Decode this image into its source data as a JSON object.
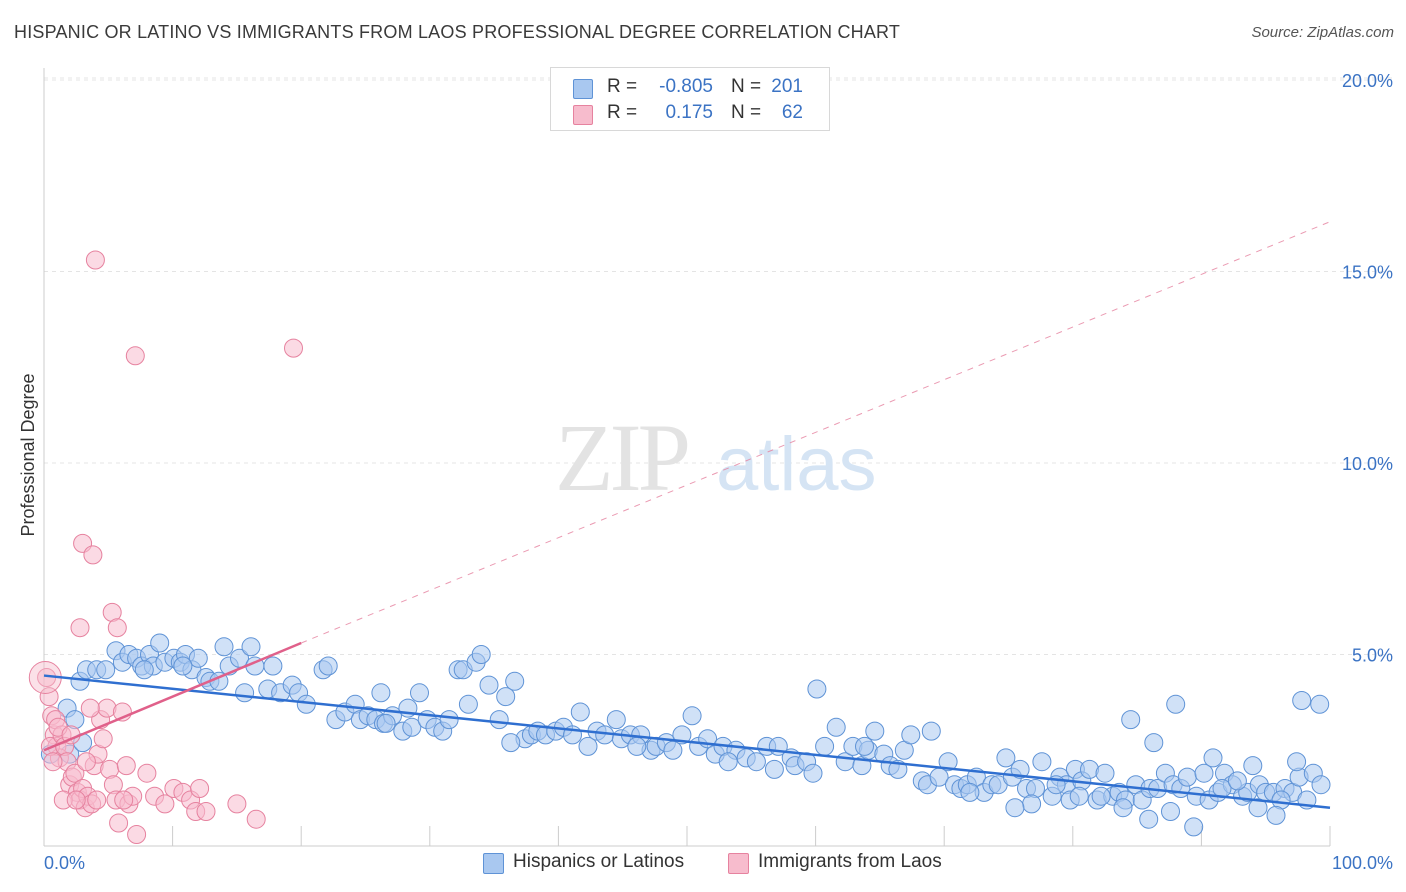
{
  "title": "HISPANIC OR LATINO VS IMMIGRANTS FROM LAOS PROFESSIONAL DEGREE CORRELATION CHART",
  "source": "Source: ZipAtlas.com",
  "watermark": {
    "zip": "ZIP",
    "atlas": "atlas"
  },
  "legend_top": {
    "rows": [
      {
        "r_label": "R =",
        "r_value": "-0.805",
        "n_label": "N =",
        "n_value": "201",
        "color": "#a9c8f0",
        "border": "#5f93d6"
      },
      {
        "r_label": "R =",
        "r_value": "0.175",
        "n_label": "N =",
        "n_value": "62",
        "color": "#f7bccd",
        "border": "#e6829f"
      }
    ]
  },
  "legend_bottom": [
    {
      "label": "Hispanics or Latinos",
      "color": "#a9c8f0",
      "border": "#5f93d6"
    },
    {
      "label": "Immigrants from Laos",
      "color": "#f7bccd",
      "border": "#e6829f"
    }
  ],
  "chart_data": {
    "type": "scatter",
    "title": "HISPANIC OR LATINO VS IMMIGRANTS FROM LAOS PROFESSIONAL DEGREE CORRELATION CHART",
    "xlabel": "",
    "ylabel": "Professional Degree",
    "xlim": [
      0,
      100
    ],
    "ylim": [
      0,
      20
    ],
    "x_ticks": [
      "0.0%",
      "100.0%"
    ],
    "y_ticks": [
      {
        "value": 5,
        "label": "5.0%"
      },
      {
        "value": 10,
        "label": "10.0%"
      },
      {
        "value": 15,
        "label": "15.0%"
      },
      {
        "value": 20,
        "label": "20.0%"
      }
    ],
    "grid": true,
    "legend": "top-center",
    "series": [
      {
        "name": "Hispanics or Latinos",
        "color": "#5f93d6",
        "fill": "#a9c8f0",
        "r": -0.805,
        "n": 201,
        "trend": {
          "x0": 0,
          "y0": 4.45,
          "x1": 100,
          "y1": 1.0,
          "style": "solid"
        },
        "points": [
          [
            0.5,
            2.4
          ],
          [
            1.8,
            3.6
          ],
          [
            2.4,
            3.3
          ],
          [
            2.8,
            4.3
          ],
          [
            3.3,
            4.6
          ],
          [
            4.1,
            4.6
          ],
          [
            4.8,
            4.6
          ],
          [
            5.6,
            5.1
          ],
          [
            6.1,
            4.8
          ],
          [
            6.6,
            5.0
          ],
          [
            7.2,
            4.9
          ],
          [
            7.6,
            4.7
          ],
          [
            8.2,
            5.0
          ],
          [
            8.5,
            4.7
          ],
          [
            9.0,
            5.3
          ],
          [
            9.4,
            4.8
          ],
          [
            10.1,
            4.9
          ],
          [
            10.6,
            4.8
          ],
          [
            11.0,
            5.0
          ],
          [
            11.5,
            4.6
          ],
          [
            12.0,
            4.9
          ],
          [
            12.6,
            4.4
          ],
          [
            12.9,
            4.3
          ],
          [
            14.0,
            5.2
          ],
          [
            14.4,
            4.7
          ],
          [
            15.2,
            4.9
          ],
          [
            16.1,
            5.2
          ],
          [
            15.6,
            4.0
          ],
          [
            16.4,
            4.7
          ],
          [
            17.4,
            4.1
          ],
          [
            17.8,
            4.7
          ],
          [
            18.4,
            4.0
          ],
          [
            19.3,
            4.2
          ],
          [
            19.8,
            4.0
          ],
          [
            20.4,
            3.7
          ],
          [
            21.7,
            4.6
          ],
          [
            22.1,
            4.7
          ],
          [
            22.7,
            3.3
          ],
          [
            23.4,
            3.5
          ],
          [
            24.2,
            3.7
          ],
          [
            24.6,
            3.3
          ],
          [
            25.2,
            3.4
          ],
          [
            25.8,
            3.3
          ],
          [
            26.4,
            3.2
          ],
          [
            26.2,
            4.0
          ],
          [
            27.1,
            3.4
          ],
          [
            27.9,
            3.0
          ],
          [
            28.3,
            3.6
          ],
          [
            28.6,
            3.1
          ],
          [
            29.2,
            4.0
          ],
          [
            29.8,
            3.3
          ],
          [
            30.4,
            3.1
          ],
          [
            31.0,
            3.0
          ],
          [
            31.5,
            3.3
          ],
          [
            32.2,
            4.6
          ],
          [
            32.6,
            4.6
          ],
          [
            33.0,
            3.7
          ],
          [
            33.6,
            4.8
          ],
          [
            34.0,
            5.0
          ],
          [
            34.6,
            4.2
          ],
          [
            35.4,
            3.3
          ],
          [
            35.9,
            3.9
          ],
          [
            36.6,
            4.3
          ],
          [
            37.4,
            2.8
          ],
          [
            37.9,
            2.9
          ],
          [
            38.4,
            3.0
          ],
          [
            39.0,
            2.9
          ],
          [
            39.8,
            3.0
          ],
          [
            40.4,
            3.1
          ],
          [
            41.1,
            2.9
          ],
          [
            41.7,
            3.5
          ],
          [
            42.3,
            2.6
          ],
          [
            43.0,
            3.0
          ],
          [
            43.6,
            2.9
          ],
          [
            44.5,
            3.3
          ],
          [
            44.9,
            2.8
          ],
          [
            45.6,
            2.9
          ],
          [
            46.4,
            2.9
          ],
          [
            47.2,
            2.5
          ],
          [
            47.6,
            2.6
          ],
          [
            48.4,
            2.7
          ],
          [
            48.9,
            2.5
          ],
          [
            49.6,
            2.9
          ],
          [
            50.4,
            3.4
          ],
          [
            50.9,
            2.6
          ],
          [
            51.6,
            2.8
          ],
          [
            52.2,
            2.4
          ],
          [
            52.8,
            2.6
          ],
          [
            53.8,
            2.5
          ],
          [
            54.6,
            2.3
          ],
          [
            55.4,
            2.2
          ],
          [
            56.2,
            2.6
          ],
          [
            56.8,
            2.0
          ],
          [
            57.1,
            2.6
          ],
          [
            58.1,
            2.3
          ],
          [
            58.4,
            2.1
          ],
          [
            59.3,
            2.2
          ],
          [
            59.8,
            1.9
          ],
          [
            60.7,
            2.6
          ],
          [
            61.6,
            3.1
          ],
          [
            62.3,
            2.2
          ],
          [
            62.9,
            2.6
          ],
          [
            63.6,
            2.1
          ],
          [
            64.1,
            2.5
          ],
          [
            64.6,
            3.0
          ],
          [
            65.3,
            2.4
          ],
          [
            65.8,
            2.1
          ],
          [
            66.4,
            2.0
          ],
          [
            66.9,
            2.5
          ],
          [
            67.4,
            2.9
          ],
          [
            68.3,
            1.7
          ],
          [
            68.7,
            1.6
          ],
          [
            69.0,
            3.0
          ],
          [
            69.6,
            1.8
          ],
          [
            70.3,
            2.2
          ],
          [
            70.8,
            1.6
          ],
          [
            71.3,
            1.5
          ],
          [
            71.8,
            1.6
          ],
          [
            72.5,
            1.8
          ],
          [
            73.1,
            1.4
          ],
          [
            73.7,
            1.6
          ],
          [
            74.2,
            1.6
          ],
          [
            74.8,
            2.3
          ],
          [
            75.3,
            1.8
          ],
          [
            75.9,
            2.0
          ],
          [
            76.4,
            1.5
          ],
          [
            77.1,
            1.5
          ],
          [
            77.6,
            2.2
          ],
          [
            78.4,
            1.3
          ],
          [
            79.0,
            1.8
          ],
          [
            79.5,
            1.6
          ],
          [
            80.2,
            2.0
          ],
          [
            80.7,
            1.7
          ],
          [
            81.3,
            2.0
          ],
          [
            81.9,
            1.2
          ],
          [
            82.5,
            1.9
          ],
          [
            83.1,
            1.3
          ],
          [
            83.6,
            1.4
          ],
          [
            84.1,
            1.2
          ],
          [
            84.9,
            1.6
          ],
          [
            85.4,
            1.2
          ],
          [
            86.0,
            1.5
          ],
          [
            86.6,
            1.5
          ],
          [
            87.2,
            1.9
          ],
          [
            87.8,
            1.6
          ],
          [
            88.4,
            1.5
          ],
          [
            88.9,
            1.8
          ],
          [
            89.6,
            1.3
          ],
          [
            90.2,
            1.9
          ],
          [
            90.6,
            1.2
          ],
          [
            91.3,
            1.4
          ],
          [
            91.8,
            1.9
          ],
          [
            92.4,
            1.6
          ],
          [
            93.2,
            1.3
          ],
          [
            93.6,
            1.4
          ],
          [
            94.5,
            1.6
          ],
          [
            95.0,
            1.4
          ],
          [
            95.6,
            1.4
          ],
          [
            96.5,
            1.5
          ],
          [
            97.1,
            1.4
          ],
          [
            97.6,
            1.8
          ],
          [
            98.2,
            1.2
          ],
          [
            98.7,
            1.9
          ],
          [
            99.3,
            1.6
          ],
          [
            2.0,
            2.4
          ],
          [
            3.0,
            2.7
          ],
          [
            7.8,
            4.6
          ],
          [
            10.8,
            4.7
          ],
          [
            13.6,
            4.3
          ],
          [
            26.6,
            3.2
          ],
          [
            36.3,
            2.7
          ],
          [
            46.1,
            2.6
          ],
          [
            53.2,
            2.2
          ],
          [
            60.1,
            4.1
          ],
          [
            63.8,
            2.6
          ],
          [
            72.0,
            1.4
          ],
          [
            79.8,
            1.2
          ],
          [
            84.5,
            3.3
          ],
          [
            86.3,
            2.7
          ],
          [
            88.0,
            3.7
          ],
          [
            91.6,
            1.5
          ],
          [
            94.0,
            2.1
          ],
          [
            96.2,
            1.2
          ],
          [
            97.8,
            3.8
          ],
          [
            99.2,
            3.7
          ],
          [
            97.4,
            2.2
          ],
          [
            95.8,
            0.8
          ],
          [
            94.4,
            1.0
          ],
          [
            92.8,
            1.7
          ],
          [
            90.9,
            2.3
          ],
          [
            89.4,
            0.5
          ],
          [
            87.6,
            0.9
          ],
          [
            85.9,
            0.7
          ],
          [
            83.9,
            1.0
          ],
          [
            82.2,
            1.3
          ],
          [
            80.5,
            1.3
          ],
          [
            78.7,
            1.6
          ],
          [
            76.8,
            1.1
          ],
          [
            75.5,
            1.0
          ]
        ]
      },
      {
        "name": "Immigrants from Laos",
        "color": "#e6829f",
        "fill": "#f7bccd",
        "r": 0.175,
        "n": 62,
        "trend": {
          "x0": 0,
          "y0": 2.5,
          "x1": 20,
          "y1": 5.3,
          "style": "solid"
        },
        "trend_extension": {
          "x0": 20,
          "y0": 5.3,
          "x1": 100,
          "y1": 16.3,
          "style": "dashed"
        },
        "points": [
          [
            0.2,
            4.4
          ],
          [
            0.4,
            3.9
          ],
          [
            0.6,
            3.4
          ],
          [
            0.8,
            2.9
          ],
          [
            1.0,
            2.6
          ],
          [
            1.2,
            2.3
          ],
          [
            0.5,
            2.6
          ],
          [
            0.9,
            3.3
          ],
          [
            1.4,
            2.9
          ],
          [
            1.6,
            2.6
          ],
          [
            1.8,
            2.2
          ],
          [
            2.0,
            1.6
          ],
          [
            2.2,
            1.8
          ],
          [
            2.4,
            1.9
          ],
          [
            2.6,
            1.4
          ],
          [
            2.8,
            1.2
          ],
          [
            3.0,
            1.5
          ],
          [
            3.2,
            1.0
          ],
          [
            3.4,
            1.3
          ],
          [
            1.5,
            1.2
          ],
          [
            3.7,
            1.1
          ],
          [
            3.9,
            2.1
          ],
          [
            4.2,
            2.4
          ],
          [
            4.4,
            3.3
          ],
          [
            4.6,
            2.8
          ],
          [
            4.9,
            3.6
          ],
          [
            5.1,
            2.0
          ],
          [
            5.4,
            1.6
          ],
          [
            5.6,
            1.2
          ],
          [
            5.8,
            0.6
          ],
          [
            6.1,
            3.5
          ],
          [
            6.4,
            2.1
          ],
          [
            6.6,
            1.1
          ],
          [
            6.9,
            1.3
          ],
          [
            7.2,
            0.3
          ],
          [
            8.0,
            1.9
          ],
          [
            8.6,
            1.3
          ],
          [
            9.4,
            1.1
          ],
          [
            10.1,
            1.5
          ],
          [
            10.8,
            1.4
          ],
          [
            11.4,
            1.2
          ],
          [
            11.8,
            0.9
          ],
          [
            12.1,
            1.5
          ],
          [
            12.6,
            0.9
          ],
          [
            4.0,
            15.3
          ],
          [
            7.1,
            12.8
          ],
          [
            19.4,
            13.0
          ],
          [
            3.0,
            7.9
          ],
          [
            3.8,
            7.6
          ],
          [
            5.3,
            6.1
          ],
          [
            2.8,
            5.7
          ],
          [
            5.7,
            5.7
          ],
          [
            3.6,
            3.6
          ],
          [
            1.1,
            3.1
          ],
          [
            0.7,
            2.2
          ],
          [
            2.1,
            2.9
          ],
          [
            3.3,
            2.2
          ],
          [
            4.1,
            1.2
          ],
          [
            6.2,
            1.2
          ],
          [
            15.0,
            1.1
          ],
          [
            16.5,
            0.7
          ],
          [
            2.5,
            1.2
          ]
        ]
      }
    ]
  }
}
